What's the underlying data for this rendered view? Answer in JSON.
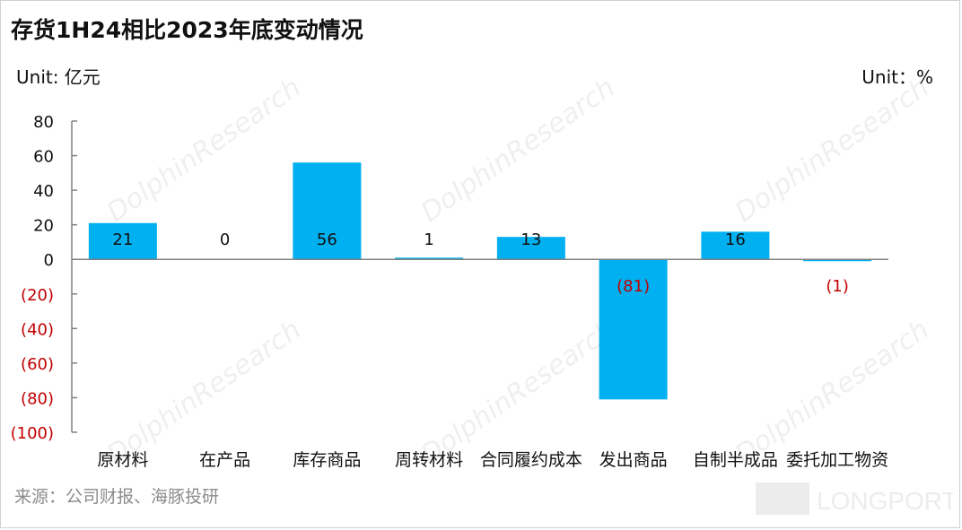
{
  "title": "存货1H24相比2023年底变动情况",
  "unit_left": "Unit: 亿元",
  "unit_right": "Unit：%",
  "source": "来源：公司财报、海豚投研",
  "watermark_text": "DolphinResearch",
  "watermark_cn": "海豚投研",
  "logo_text": "LONGPORT",
  "colors": {
    "bar": "#00b0f0",
    "negative_label": "#c00000",
    "axis": "#808080"
  },
  "chart_data": {
    "type": "bar",
    "title": "存货1H24相比2023年底变动情况",
    "categories": [
      "原材料",
      "在产品",
      "库存商品",
      "周转材料",
      "合同履约成本",
      "发出商品",
      "自制半成品",
      "委托加工物资"
    ],
    "values": [
      21,
      0,
      56,
      1,
      13,
      -81,
      16,
      -1
    ],
    "data_labels": [
      "21",
      "0",
      "56",
      "1",
      "13",
      "(81)",
      "16",
      "(1)"
    ],
    "ylim": [
      -100,
      80
    ],
    "yticks": [
      80,
      60,
      40,
      20,
      0,
      -20,
      -40,
      -60,
      -80,
      -100
    ],
    "ytick_labels": [
      "80",
      "60",
      "40",
      "20",
      "0",
      "(20)",
      "(40)",
      "(60)",
      "(80)",
      "(100)"
    ],
    "ylabel": "Unit: 亿元",
    "grid": false,
    "legend": "none"
  }
}
